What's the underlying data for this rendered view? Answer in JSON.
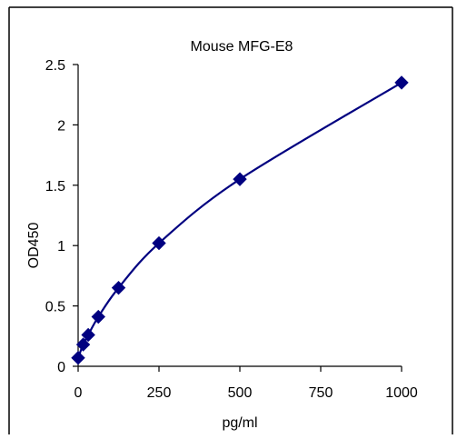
{
  "chart_data": {
    "type": "scatter",
    "title": "Mouse MFG-E8",
    "xlabel": "pg/ml",
    "ylabel": "OD450",
    "xlim": [
      0,
      1000
    ],
    "ylim": [
      0,
      2.5
    ],
    "x_ticks": [
      0,
      250,
      500,
      750,
      1000
    ],
    "y_ticks": [
      0,
      0.5,
      1,
      1.5,
      2,
      2.5
    ],
    "x_tick_labels": [
      "0",
      "250",
      "500",
      "750",
      "1000"
    ],
    "y_tick_labels": [
      "0",
      "0.5",
      "1",
      "1.5",
      "2",
      "2.5"
    ],
    "grid": false,
    "legend": "none",
    "marker": "diamond",
    "trendline": "smooth fitted curve",
    "series": [
      {
        "x": [
          0,
          15.6,
          31.25,
          62.5,
          125,
          250,
          500,
          1000
        ],
        "y": [
          0.07,
          0.18,
          0.26,
          0.41,
          0.65,
          1.02,
          1.55,
          2.35
        ],
        "color": "#000080"
      }
    ]
  }
}
